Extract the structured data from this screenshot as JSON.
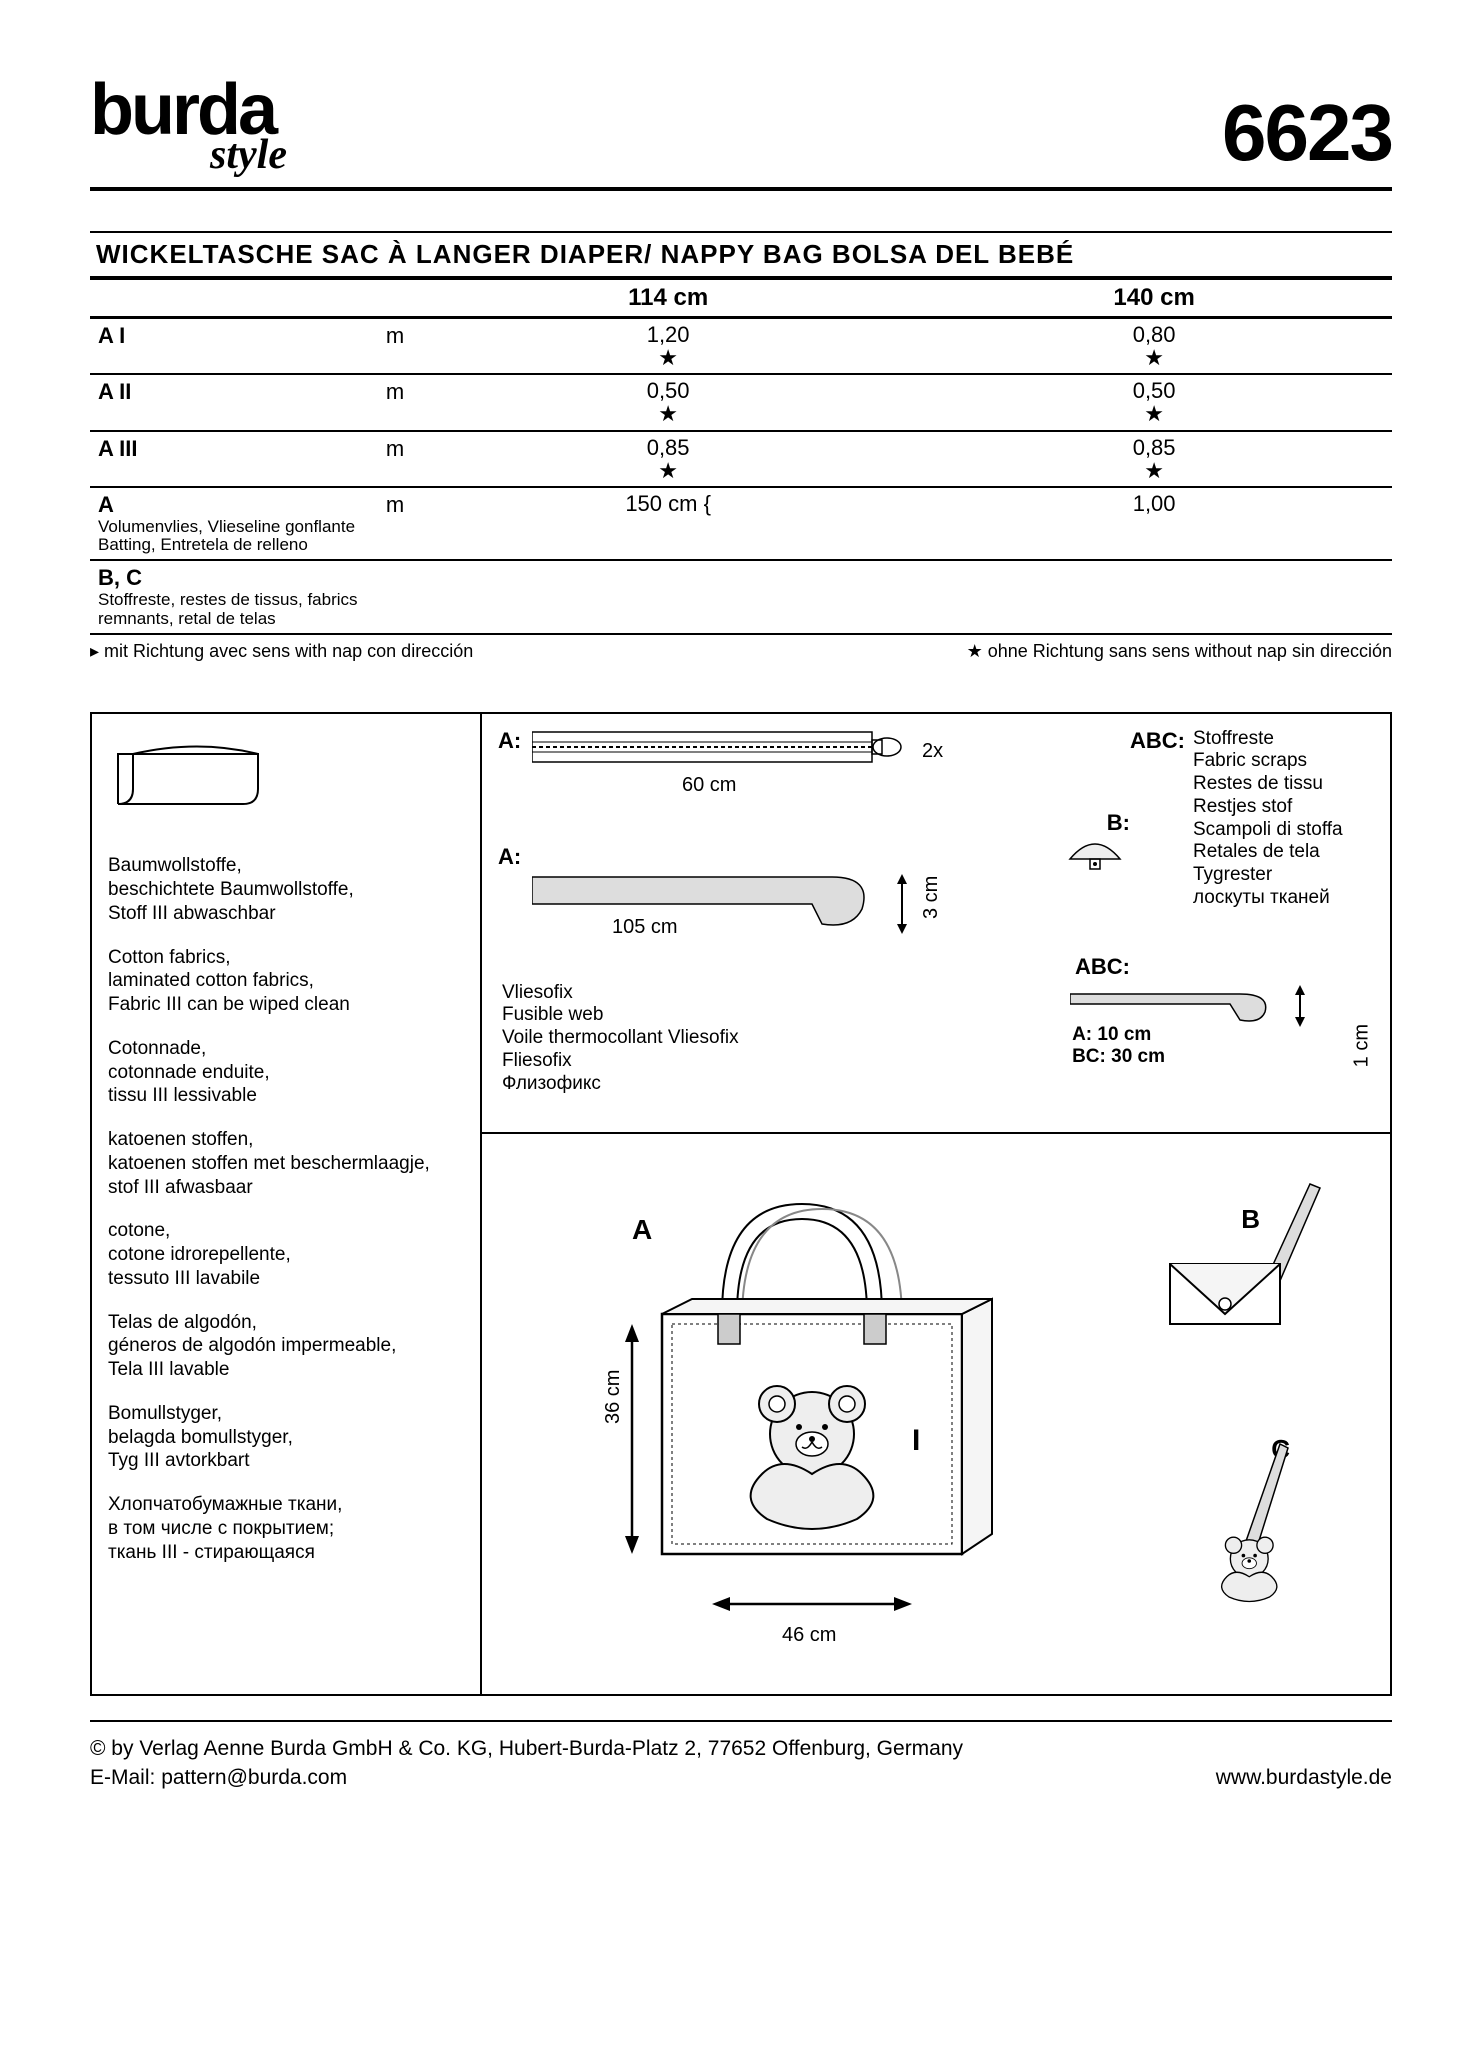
{
  "brand": {
    "main": "burda",
    "sub": "style"
  },
  "pattern_number": "6623",
  "title": "WICKELTASCHE   SAC À LANGER   DIAPER/ NAPPY BAG   BOLSA DEL BEBÉ",
  "fabric_table": {
    "col_widths": [
      "114 cm",
      "140 cm"
    ],
    "rows": [
      {
        "label": "A I",
        "sub": "",
        "unit": "m",
        "v1": "1,20",
        "s1": "★",
        "v2": "0,80",
        "s2": "★"
      },
      {
        "label": "A II",
        "sub": "",
        "unit": "m",
        "v1": "0,50",
        "s1": "★",
        "v2": "0,50",
        "s2": "★"
      },
      {
        "label": "A III",
        "sub": "",
        "unit": "m",
        "v1": "0,85",
        "s1": "★",
        "v2": "0,85",
        "s2": "★"
      },
      {
        "label": "A",
        "sub": "Volumenvlies, Vlieseline gonflante\nBatting, Entretela de relleno",
        "unit": "m",
        "v1": "150 cm {",
        "s1": "",
        "v2": "1,00",
        "s2": ""
      },
      {
        "label": "B, C",
        "sub": "Stoffreste, restes de tissus, fabrics remnants, retal de telas",
        "unit": "",
        "v1": "",
        "s1": "",
        "v2": "",
        "s2": ""
      }
    ]
  },
  "legend": {
    "with_nap": "▸  mit Richtung   avec sens   with nap   con dirección",
    "without_nap": "★   ohne Richtung   sans sens   without nap   sin dirección"
  },
  "fabric_recs": [
    [
      "Baumwollstoffe,",
      "beschichtete Baumwollstoffe,",
      "Stoff III abwaschbar"
    ],
    [
      "Cotton fabrics,",
      "laminated cotton fabrics,",
      "Fabric III can be wiped clean"
    ],
    [
      "Cotonnade,",
      "cotonnade enduite,",
      "tissu III lessivable"
    ],
    [
      "katoenen stoffen,",
      "katoenen stoffen met beschermlaagje,",
      "stof III afwasbaar"
    ],
    [
      "cotone,",
      "cotone idrorepellente,",
      "tessuto III lavabile"
    ],
    [
      "Telas de algodón,",
      "géneros de algodón impermeable,",
      "Tela III lavable"
    ],
    [
      "Bomullstyger,",
      "belagda bomullstyger,",
      "Tyg III avtorkbart"
    ],
    [
      "Хлопчатобумажные ткани,",
      "в том числе с покрытием;",
      "ткань III - стирающаяся"
    ]
  ],
  "notions": {
    "zipper": {
      "variant": "A:",
      "qty": "2x",
      "length": "60 cm"
    },
    "webbing": {
      "variant": "A:",
      "length": "105 cm",
      "width": "3 cm"
    },
    "button": {
      "variant": "B:"
    },
    "fusible": [
      "Vliesofix",
      "Fusible web",
      "Voile thermocollant Vliesofix",
      "Fliesofix",
      "Флизофикс"
    ],
    "scraps": {
      "variant": "ABC:",
      "lines": [
        "Stoffreste",
        "Fabric scraps",
        "Restes de tissu",
        "Restjes stof",
        "Scampoli di stoffa",
        "Retales de tela",
        "Tygrester",
        "лоскуты тканей"
      ]
    },
    "ribbon": {
      "variant": "ABC:",
      "a": "A: 10 cm",
      "bc": "BC: 30 cm",
      "width": "1 cm"
    }
  },
  "views": {
    "bag": {
      "label": "A",
      "fabric": "I",
      "height": "36 cm",
      "width": "46 cm"
    },
    "pouch": {
      "label": "B"
    },
    "charm": {
      "label": "C"
    }
  },
  "footer": {
    "copyright": "© by Verlag Aenne Burda GmbH & Co. KG, Hubert-Burda-Platz 2, 77652 Offenburg, Germany",
    "email_label": "E-Mail:",
    "email": "pattern@burda.com",
    "url": "www.burdastyle.de"
  }
}
